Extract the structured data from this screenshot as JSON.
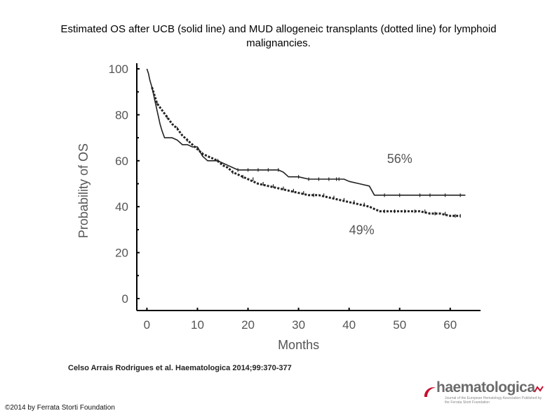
{
  "header": {
    "title_line1": "Estimated OS after UCB (solid line) and MUD allogeneic transplants (dotted line) for lymphoid",
    "title_line2": "malignancies."
  },
  "footer": {
    "citation": "Celso Arrais Rodrigues et al. Haematologica 2014;99:370-377",
    "copyright": "©2014 by Ferrata Storti Foundation"
  },
  "logo": {
    "name": "haematologica",
    "subtitle": "Journal of the European Hematology Association Published by the Ferrata Storti Foundation"
  },
  "chart_data": {
    "type": "line",
    "title": "Estimated OS after UCB (solid line) and MUD allogeneic transplants (dotted line) for lymphoid malignancies.",
    "xlabel": "Months",
    "ylabel": "Probability of OS",
    "xlim": [
      -2,
      66
    ],
    "ylim": [
      0,
      100
    ],
    "x_ticks": [
      0,
      10,
      20,
      30,
      40,
      50,
      60
    ],
    "y_ticks": [
      0,
      20,
      40,
      60,
      80,
      100
    ],
    "annotations": [
      {
        "text": "56%",
        "x": 47.5,
        "y": 59
      },
      {
        "text": "49%",
        "x": 40,
        "y": 28
      }
    ],
    "series": [
      {
        "name": "UCB",
        "style": "solid",
        "x": [
          0,
          0.3,
          0.6,
          1,
          1.3,
          1.6,
          2,
          2.3,
          2.6,
          3,
          3.5,
          5,
          6,
          6.5,
          7,
          8,
          9,
          10,
          10.5,
          11,
          12,
          13,
          14,
          15,
          16,
          17,
          18,
          20,
          24,
          26,
          27,
          28,
          30,
          32,
          34,
          36,
          38,
          39,
          40,
          42,
          44,
          45,
          46,
          50,
          55,
          60,
          63
        ],
        "y": [
          100,
          98,
          95,
          92,
          89,
          86,
          82,
          79,
          76,
          73,
          70,
          70,
          69,
          68,
          67,
          67,
          66,
          66,
          64,
          62,
          60,
          60,
          60,
          59,
          58,
          57,
          56,
          56,
          56,
          56,
          55,
          53,
          53,
          52,
          52,
          52,
          52,
          52,
          51,
          50,
          49,
          45,
          45,
          45,
          45,
          45,
          45
        ],
        "censor_x": [
          18,
          20,
          22,
          24,
          26,
          30,
          32,
          34,
          36,
          37.5,
          38,
          47,
          50,
          54,
          56,
          59,
          62
        ]
      },
      {
        "name": "MUD",
        "style": "dotted",
        "x": [
          1,
          2,
          3,
          4,
          5,
          6,
          7,
          8,
          9,
          10,
          11,
          12,
          13,
          14,
          15,
          16,
          17,
          18,
          19,
          20,
          22,
          24,
          26,
          28,
          30,
          32,
          34,
          36,
          38,
          40,
          42,
          44,
          45,
          46,
          48,
          50,
          52,
          54,
          56,
          58,
          60,
          62
        ],
        "y": [
          92,
          85,
          82,
          79,
          76,
          74,
          71,
          69,
          67,
          65,
          63,
          62,
          61,
          60,
          58,
          57,
          55,
          54,
          53,
          52,
          50,
          49,
          48,
          47,
          46,
          45,
          45,
          44,
          43,
          42,
          41,
          40,
          39,
          38,
          38,
          38,
          38,
          38,
          37,
          37,
          36,
          36
        ],
        "censor_x": [
          2,
          4,
          6,
          8,
          11,
          14,
          17,
          19,
          21,
          23,
          25,
          27,
          29,
          31,
          33,
          35,
          37,
          39,
          41,
          43,
          47,
          49,
          51,
          53,
          55,
          57,
          59,
          61,
          62
        ]
      }
    ]
  }
}
